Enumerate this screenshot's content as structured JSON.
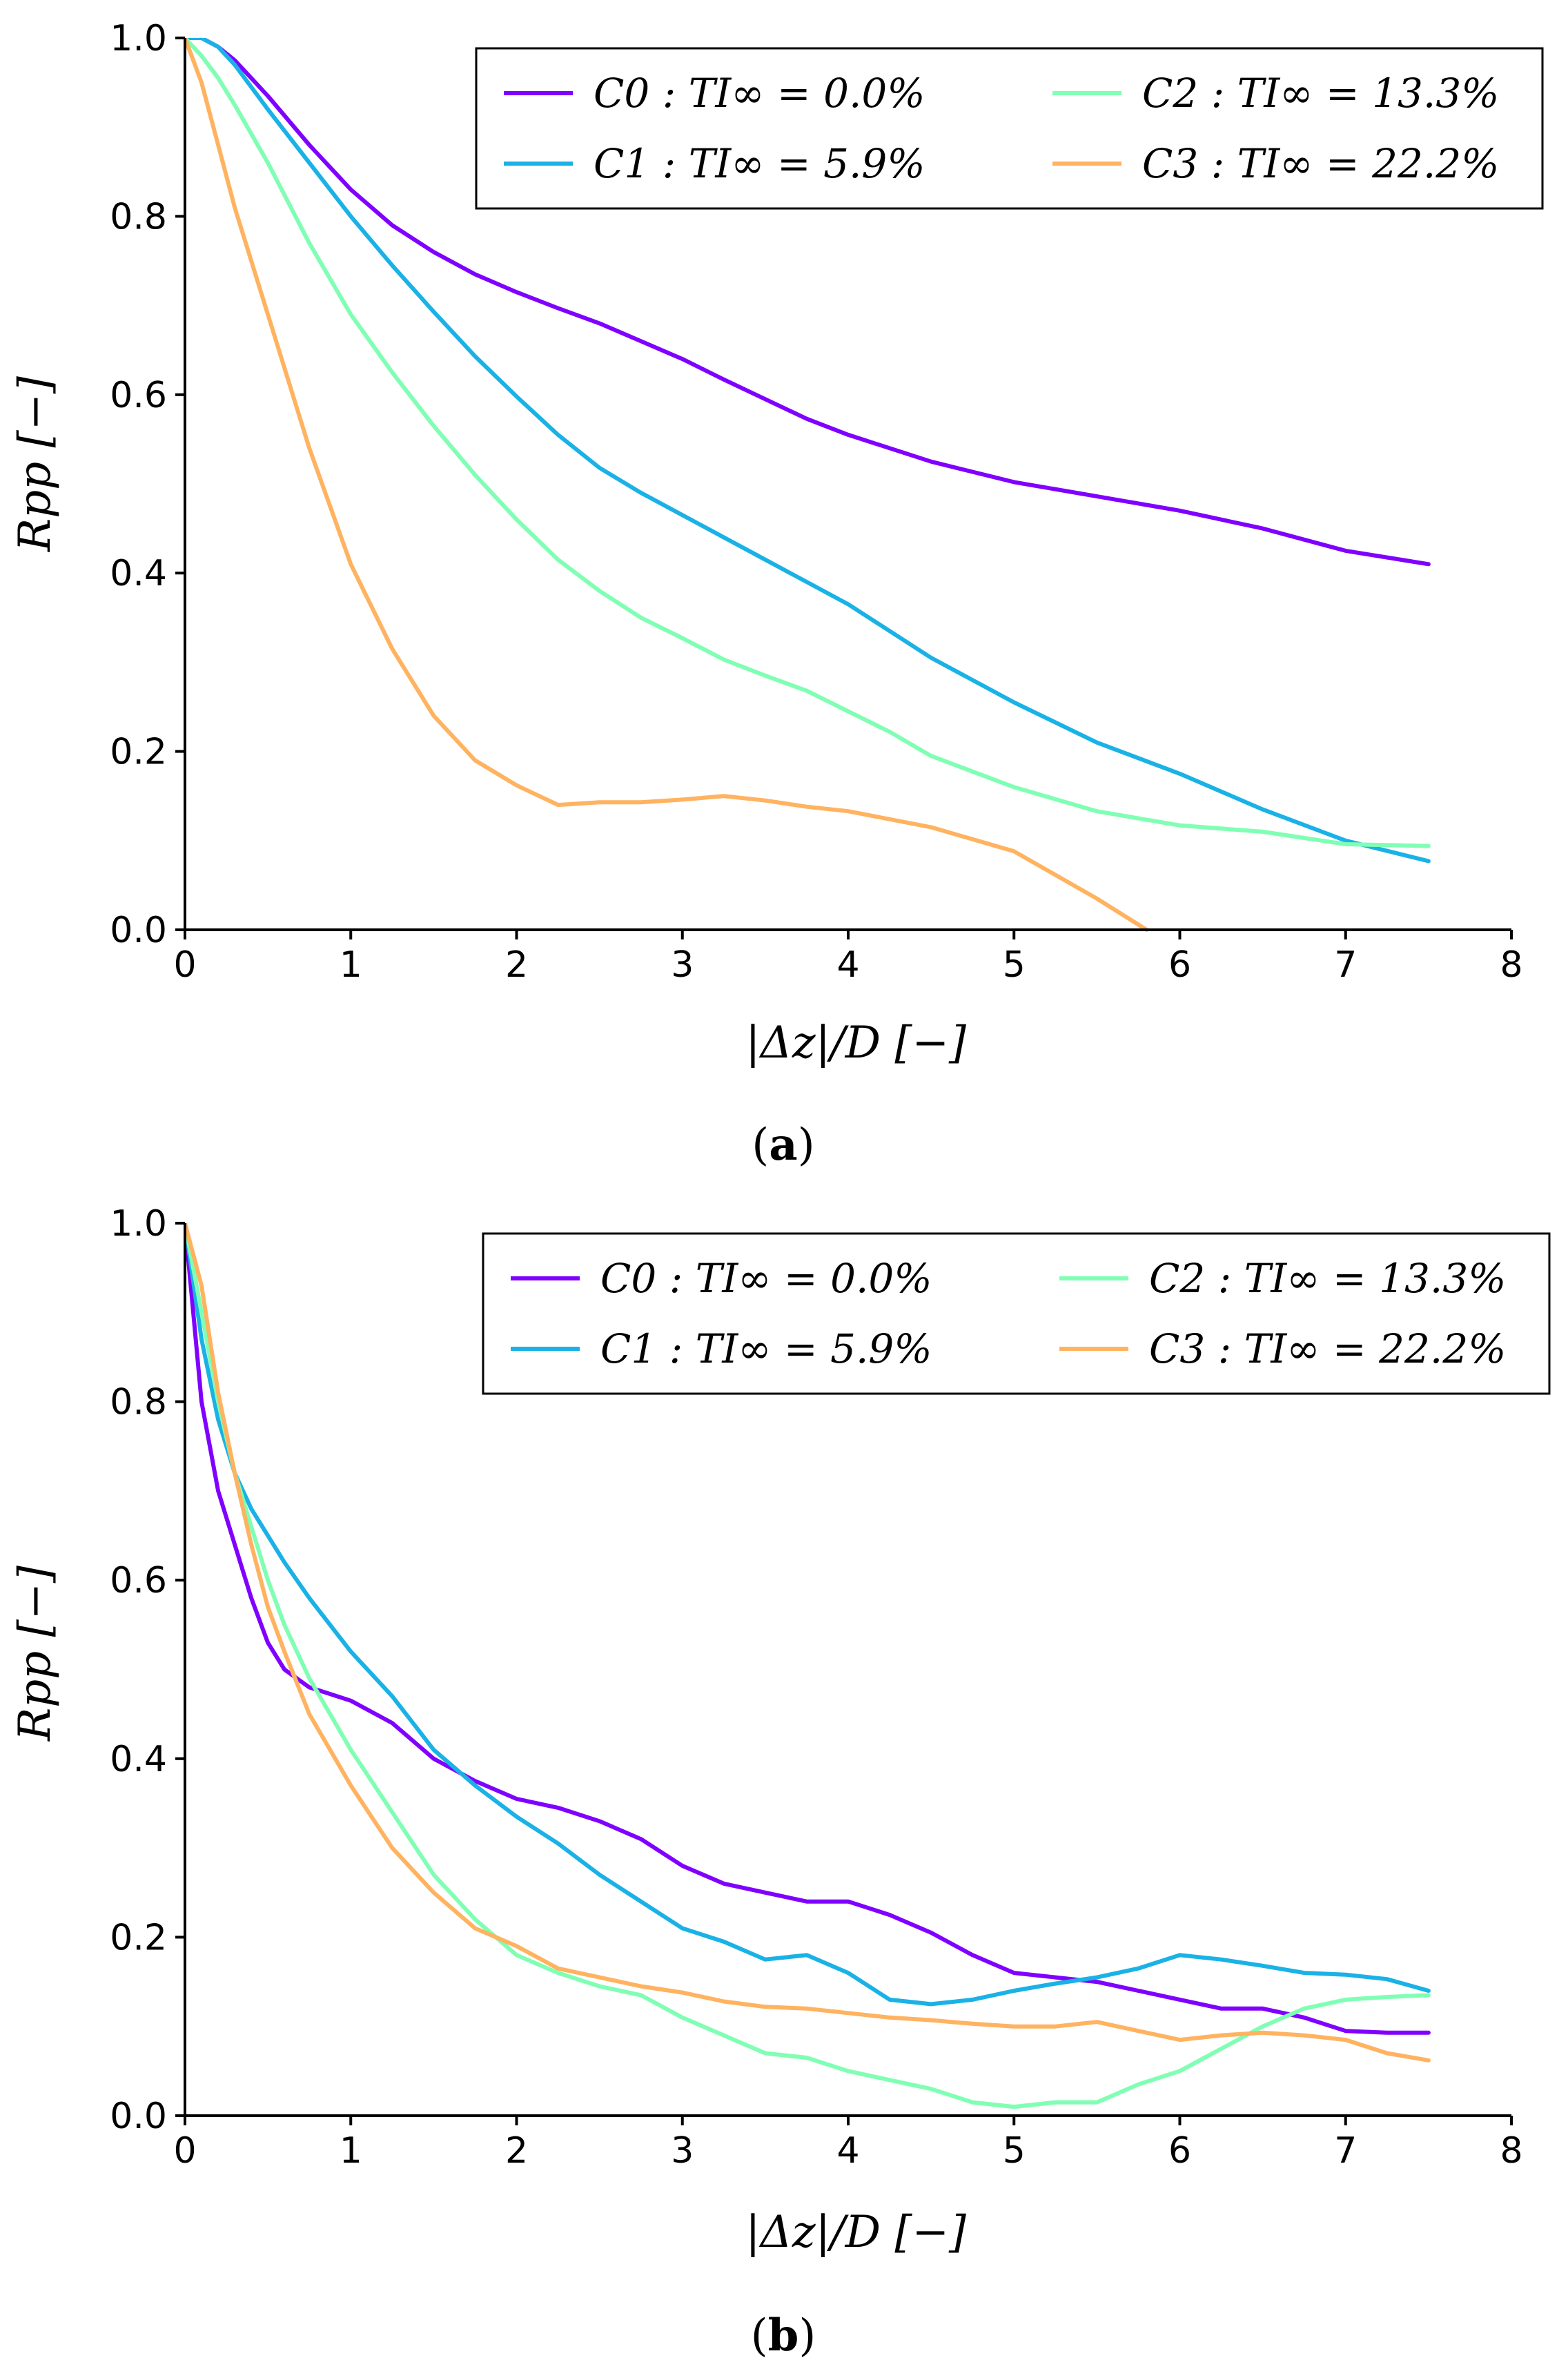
{
  "colors": {
    "C0": "#8000ff",
    "C1": "#1ab2e6",
    "C2": "#80ffb4",
    "C3": "#ffb360"
  },
  "chart_data": [
    {
      "type": "line",
      "panel": "a",
      "caption_letter": "a",
      "xlabel": "|Δz|/D [−]",
      "ylabel": "Rpp [−]",
      "xlim": [
        0,
        8
      ],
      "ylim": [
        0,
        1
      ],
      "xticks": [
        "0",
        "1",
        "2",
        "3",
        "4",
        "5",
        "6",
        "7",
        "8"
      ],
      "yticks": [
        "0.0",
        "0.2",
        "0.4",
        "0.6",
        "0.8",
        "1.0"
      ],
      "legend_position": "top-right",
      "series": [
        {
          "name": "C0 : TI∞ = 0.0%",
          "color_key": "C0",
          "x": [
            0,
            0.1,
            0.2,
            0.3,
            0.5,
            0.75,
            1.0,
            1.25,
            1.5,
            1.75,
            2.0,
            2.25,
            2.5,
            2.75,
            3.0,
            3.25,
            3.5,
            3.75,
            4.0,
            4.5,
            5.0,
            5.5,
            6.0,
            6.5,
            7.0,
            7.5
          ],
          "y": [
            1.0,
            1.0,
            0.99,
            0.975,
            0.935,
            0.88,
            0.83,
            0.79,
            0.76,
            0.735,
            0.715,
            0.697,
            0.68,
            0.66,
            0.64,
            0.617,
            0.595,
            0.573,
            0.555,
            0.525,
            0.502,
            0.486,
            0.47,
            0.45,
            0.425,
            0.41
          ]
        },
        {
          "name": "C1 : TI∞ = 5.9%",
          "color_key": "C1",
          "x": [
            0,
            0.1,
            0.2,
            0.3,
            0.5,
            0.75,
            1.0,
            1.25,
            1.5,
            1.75,
            2.0,
            2.25,
            2.5,
            2.75,
            3.0,
            3.5,
            4.0,
            4.5,
            5.0,
            5.5,
            6.0,
            6.5,
            7.0,
            7.5
          ],
          "y": [
            1.0,
            1.0,
            0.99,
            0.97,
            0.92,
            0.86,
            0.8,
            0.745,
            0.693,
            0.643,
            0.598,
            0.555,
            0.518,
            0.49,
            0.465,
            0.415,
            0.365,
            0.305,
            0.255,
            0.21,
            0.175,
            0.135,
            0.1,
            0.077
          ]
        },
        {
          "name": "C2 : TI∞ = 13.3%",
          "color_key": "C2",
          "x": [
            0,
            0.1,
            0.2,
            0.3,
            0.5,
            0.75,
            1.0,
            1.25,
            1.5,
            1.75,
            2.0,
            2.25,
            2.5,
            2.75,
            3.0,
            3.25,
            3.5,
            3.75,
            4.0,
            4.25,
            4.5,
            5.0,
            5.5,
            6.0,
            6.5,
            7.0,
            7.5
          ],
          "y": [
            1.0,
            0.98,
            0.955,
            0.925,
            0.86,
            0.77,
            0.69,
            0.625,
            0.565,
            0.51,
            0.46,
            0.415,
            0.38,
            0.35,
            0.327,
            0.303,
            0.285,
            0.268,
            0.245,
            0.222,
            0.195,
            0.16,
            0.133,
            0.117,
            0.11,
            0.096,
            0.094
          ]
        },
        {
          "name": "C3 : TI∞ = 22.2%",
          "color_key": "C3",
          "x": [
            0,
            0.1,
            0.2,
            0.3,
            0.5,
            0.75,
            1.0,
            1.25,
            1.5,
            1.75,
            2.0,
            2.25,
            2.5,
            2.75,
            3.0,
            3.25,
            3.5,
            3.75,
            4.0,
            4.5,
            5.0,
            5.5,
            5.8
          ],
          "y": [
            1.0,
            0.95,
            0.88,
            0.81,
            0.69,
            0.54,
            0.41,
            0.315,
            0.24,
            0.19,
            0.162,
            0.14,
            0.143,
            0.143,
            0.146,
            0.15,
            0.145,
            0.138,
            0.133,
            0.115,
            0.088,
            0.035,
            0.0
          ]
        }
      ]
    },
    {
      "type": "line",
      "panel": "b",
      "caption_letter": "b",
      "xlabel": "|Δz|/D [−]",
      "ylabel": "Rpp [−]",
      "xlim": [
        0,
        8
      ],
      "ylim": [
        0,
        1
      ],
      "xticks": [
        "0",
        "1",
        "2",
        "3",
        "4",
        "5",
        "6",
        "7",
        "8"
      ],
      "yticks": [
        "0.0",
        "0.2",
        "0.4",
        "0.6",
        "0.8",
        "1.0"
      ],
      "legend_position": "top-right",
      "series": [
        {
          "name": "C0 : TI∞ = 0.0%",
          "color_key": "C0",
          "x": [
            0,
            0.1,
            0.2,
            0.3,
            0.4,
            0.5,
            0.6,
            0.75,
            1.0,
            1.25,
            1.5,
            1.75,
            2.0,
            2.25,
            2.5,
            2.75,
            3.0,
            3.25,
            3.5,
            3.75,
            4.0,
            4.25,
            4.5,
            4.75,
            5.0,
            5.25,
            5.5,
            5.75,
            6.0,
            6.25,
            6.5,
            6.75,
            7.0,
            7.25,
            7.5
          ],
          "y": [
            1.0,
            0.8,
            0.7,
            0.64,
            0.58,
            0.53,
            0.5,
            0.48,
            0.465,
            0.44,
            0.4,
            0.375,
            0.355,
            0.345,
            0.33,
            0.31,
            0.28,
            0.26,
            0.25,
            0.24,
            0.24,
            0.225,
            0.205,
            0.18,
            0.16,
            0.155,
            0.15,
            0.14,
            0.13,
            0.12,
            0.12,
            0.11,
            0.095,
            0.093,
            0.093
          ]
        },
        {
          "name": "C1 : TI∞ = 5.9%",
          "color_key": "C1",
          "x": [
            0,
            0.1,
            0.2,
            0.3,
            0.4,
            0.5,
            0.6,
            0.75,
            1.0,
            1.25,
            1.5,
            1.75,
            2.0,
            2.25,
            2.5,
            2.75,
            3.0,
            3.25,
            3.5,
            3.75,
            4.0,
            4.25,
            4.5,
            4.75,
            5.0,
            5.25,
            5.5,
            5.75,
            6.0,
            6.25,
            6.5,
            6.75,
            7.0,
            7.25,
            7.5
          ],
          "y": [
            1.0,
            0.87,
            0.78,
            0.72,
            0.68,
            0.65,
            0.62,
            0.58,
            0.52,
            0.47,
            0.41,
            0.37,
            0.335,
            0.305,
            0.27,
            0.24,
            0.21,
            0.195,
            0.175,
            0.18,
            0.16,
            0.13,
            0.125,
            0.13,
            0.14,
            0.148,
            0.155,
            0.165,
            0.18,
            0.175,
            0.168,
            0.16,
            0.158,
            0.153,
            0.14
          ]
        },
        {
          "name": "C2 : TI∞ = 13.3%",
          "color_key": "C2",
          "x": [
            0,
            0.1,
            0.2,
            0.3,
            0.4,
            0.5,
            0.6,
            0.75,
            1.0,
            1.25,
            1.5,
            1.75,
            2.0,
            2.25,
            2.5,
            2.75,
            3.0,
            3.25,
            3.5,
            3.75,
            4.0,
            4.25,
            4.5,
            4.75,
            5.0,
            5.25,
            5.5,
            5.75,
            6.0,
            6.25,
            6.5,
            6.75,
            7.0,
            7.25,
            7.5
          ],
          "y": [
            1.0,
            0.9,
            0.8,
            0.72,
            0.66,
            0.6,
            0.55,
            0.49,
            0.41,
            0.34,
            0.27,
            0.22,
            0.18,
            0.16,
            0.145,
            0.135,
            0.11,
            0.09,
            0.07,
            0.065,
            0.05,
            0.04,
            0.03,
            0.015,
            0.01,
            0.015,
            0.015,
            0.035,
            0.05,
            0.075,
            0.1,
            0.12,
            0.13,
            0.133,
            0.135
          ]
        },
        {
          "name": "C3 : TI∞ = 22.2%",
          "color_key": "C3",
          "x": [
            0,
            0.1,
            0.2,
            0.3,
            0.4,
            0.5,
            0.6,
            0.75,
            1.0,
            1.25,
            1.5,
            1.75,
            2.0,
            2.25,
            2.5,
            2.75,
            3.0,
            3.25,
            3.5,
            3.75,
            4.0,
            4.25,
            4.5,
            4.75,
            5.0,
            5.25,
            5.5,
            5.75,
            6.0,
            6.25,
            6.5,
            6.75,
            7.0,
            7.25,
            7.5
          ],
          "y": [
            1.0,
            0.93,
            0.81,
            0.72,
            0.64,
            0.57,
            0.52,
            0.45,
            0.37,
            0.3,
            0.25,
            0.21,
            0.19,
            0.165,
            0.155,
            0.145,
            0.138,
            0.128,
            0.122,
            0.12,
            0.115,
            0.11,
            0.107,
            0.103,
            0.1,
            0.1,
            0.105,
            0.095,
            0.085,
            0.09,
            0.093,
            0.09,
            0.085,
            0.07,
            0.062
          ]
        }
      ]
    }
  ]
}
